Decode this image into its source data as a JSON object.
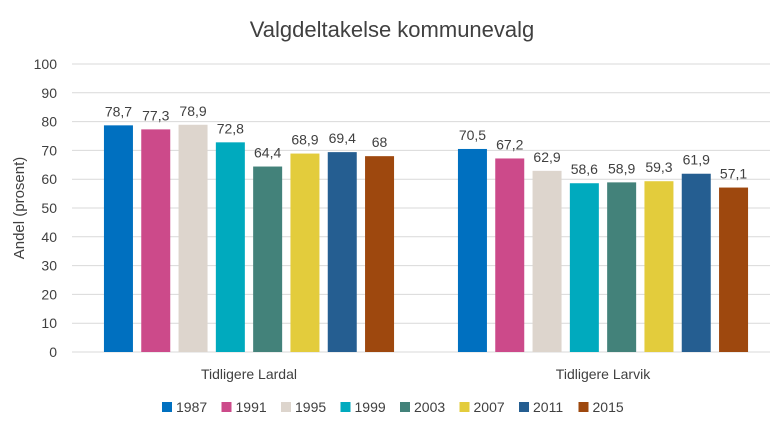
{
  "chart_data": {
    "type": "bar",
    "title": "Valgdeltakelse kommunevalg",
    "xlabel": "",
    "ylabel": "Andel (prosent)",
    "ylim": [
      0,
      100
    ],
    "yticks": [
      0,
      10,
      20,
      30,
      40,
      50,
      60,
      70,
      80,
      90,
      100
    ],
    "grid": true,
    "legend_position": "bottom",
    "categories": [
      "Tidligere Lardal",
      "Tidligere Larvik"
    ],
    "series": [
      {
        "name": "1987",
        "color": "#0070c0",
        "values": [
          78.7,
          70.5
        ],
        "labels": [
          "78,7",
          "70,5"
        ]
      },
      {
        "name": "1991",
        "color": "#cc4a8a",
        "values": [
          77.3,
          67.2
        ],
        "labels": [
          "77,3",
          "67,2"
        ]
      },
      {
        "name": "1995",
        "color": "#ddd5cd",
        "values": [
          78.9,
          62.9
        ],
        "labels": [
          "78,9",
          "62,9"
        ]
      },
      {
        "name": "1999",
        "color": "#00aabe",
        "values": [
          72.8,
          58.6
        ],
        "labels": [
          "72,8",
          "58,6"
        ]
      },
      {
        "name": "2003",
        "color": "#43827a",
        "values": [
          64.4,
          58.9
        ],
        "labels": [
          "64,4",
          "58,9"
        ]
      },
      {
        "name": "2007",
        "color": "#e3cc3c",
        "values": [
          68.9,
          59.3
        ],
        "labels": [
          "68,9",
          "59,3"
        ]
      },
      {
        "name": "2011",
        "color": "#255e91",
        "values": [
          69.4,
          61.9
        ],
        "labels": [
          "69,4",
          "61,9"
        ]
      },
      {
        "name": "2015",
        "color": "#9e480e",
        "values": [
          68,
          57.1
        ],
        "labels": [
          "68",
          "57,1"
        ]
      }
    ]
  }
}
